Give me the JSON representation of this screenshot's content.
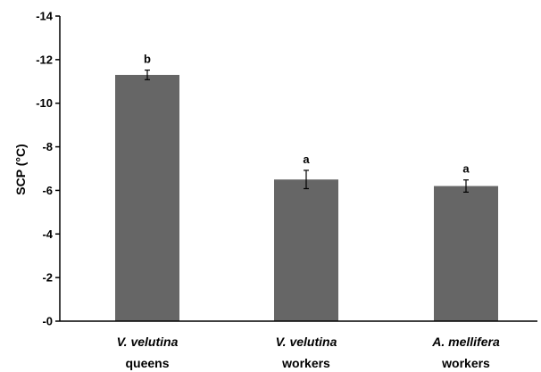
{
  "chart_data": {
    "type": "bar",
    "categories": [
      {
        "species": "V. velutina",
        "caste": "queens"
      },
      {
        "species": "V. velutina",
        "caste": "workers"
      },
      {
        "species": "A. mellifera",
        "caste": "workers"
      }
    ],
    "values": [
      -11.3,
      -6.5,
      -6.2
    ],
    "error": [
      0.22,
      0.42,
      0.28
    ],
    "significance": [
      "b",
      "a",
      "a"
    ],
    "ylabel": "SCP (°C)",
    "ylim": [
      0,
      -14
    ],
    "yticks": [
      "-0",
      "-2",
      "-4",
      "-6",
      "-8",
      "-10",
      "-12",
      "-14"
    ],
    "ytick_values": [
      0,
      -2,
      -4,
      -6,
      -8,
      -10,
      -12,
      -14
    ],
    "bar_color": "#666666",
    "grid": false
  }
}
